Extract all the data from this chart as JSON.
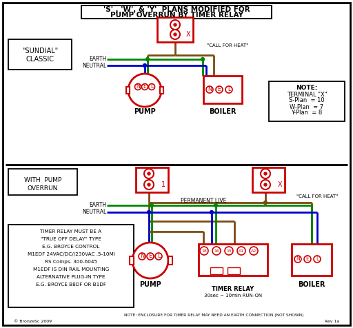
{
  "title_line1": "'S' , 'W', & 'Y'  PLANS MODIFIED FOR",
  "title_line2": "PUMP OVERRUN BY TIMER RELAY",
  "bg_color": "#ffffff",
  "red": "#cc0000",
  "green": "#008800",
  "blue": "#0000cc",
  "brown": "#7B4A12",
  "black": "#000000",
  "sundial_label1": "\"SUNDIAL\"",
  "sundial_label2": "CLASSIC",
  "with_pump1": "WITH  PUMP",
  "with_pump2": "OVERRUN",
  "call_heat": "\"CALL FOR HEAT\"",
  "perm_live": "PERMANENT LIVE",
  "earth_lbl": "EARTH",
  "neutral_lbl": "NEUTRAL",
  "pump_lbl": "PUMP",
  "boiler_lbl": "BOILER",
  "note_title": "NOTE:",
  "note_line1": "TERMINAL \"X\"",
  "note_line2": "S-Plan  = 10",
  "note_line3": "W-Plan  = 7",
  "note_line4": "Y-Plan  = 8",
  "timer_info1": "TIMER RELAY MUST BE A",
  "timer_info2": "\"TRUE OFF DELAY\" TYPE",
  "timer_info3": "E.G. BROYCE CONTROL",
  "timer_info4": "M1EDF 24VAC/DC//230VAC .5-10MI",
  "timer_info5": "RS Comps. 300-6045",
  "timer_info6": "M1EDF IS DIN RAIL MOUNTING",
  "timer_info7": "ALTERNATIVE PLUG-IN TYPE",
  "timer_info8": "E.G. BROYCE B8DF OR B1DF",
  "timer_relay_lbl": "TIMER RELAY",
  "timer_runon": "30sec ~ 10min RUN-ON",
  "note_bottom": "NOTE: ENCLOSURE FOR TIMER RELAY MAY NEED AN EARTH CONNECTION (NOT SHOWN)",
  "watermark": "© BronzeSc 2009",
  "rev": "Rev 1a"
}
